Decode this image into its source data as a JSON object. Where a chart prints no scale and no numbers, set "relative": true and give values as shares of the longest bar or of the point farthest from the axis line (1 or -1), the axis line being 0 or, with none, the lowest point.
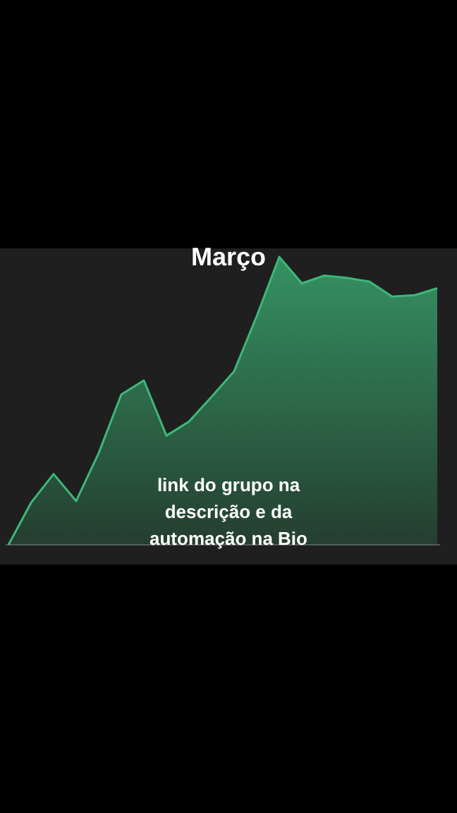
{
  "chart_data": {
    "type": "area",
    "title": "Março",
    "relative": true,
    "categories": [
      null,
      null,
      null,
      null,
      null,
      null,
      null,
      null,
      null,
      null,
      null,
      null,
      null,
      null,
      null,
      null,
      null,
      null,
      null,
      null
    ],
    "series": [
      {
        "color": "#3cb878",
        "values": [
          0,
          0.146,
          0.246,
          0.152,
          0.319,
          0.522,
          0.571,
          0.379,
          0.428,
          0.514,
          0.603,
          0.794,
          1,
          0.908,
          0.935,
          0.927,
          0.914,
          0.862,
          0.867,
          0.891
        ]
      }
    ],
    "annotations": [
      "link do grupo na\ndescrição e da\nautomação na Bio"
    ]
  }
}
